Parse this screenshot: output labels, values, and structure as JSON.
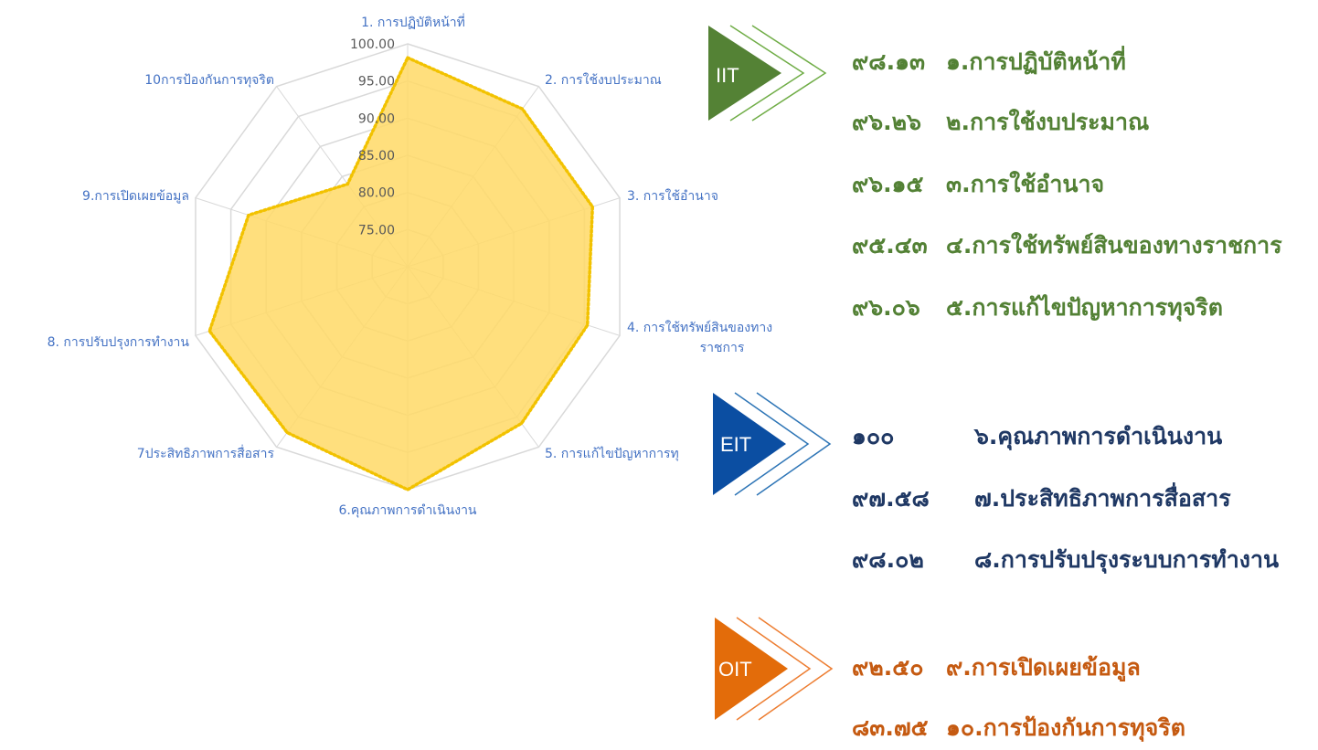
{
  "chart_data": {
    "type": "radar",
    "axes": [
      "1. การปฏิบัติหน้าที่",
      "2. การใช้งบประมาณ",
      "3. การใช้อำนาจ",
      "4. การใช้ทรัพย์สินของทาง ราชการ",
      "5. การแก้ไขปัญหาการทุ",
      "6.คุณภาพการดำเนินงาน",
      "7ประสิทธิภาพการสื่อสาร",
      "8. การปรับปรุงการทำงาน",
      "9.การเปิดเผยข้อมูล",
      "10การป้องกันการทุจริต"
    ],
    "axis_label_lines": [
      [
        "1. การปฏิบัติหน้าที่"
      ],
      [
        "2. การใช้งบประมาณ"
      ],
      [
        "3. การใช้อำนาจ"
      ],
      [
        "4. การใช้ทรัพย์สินของทาง",
        "ราชการ"
      ],
      [
        "5. การแก้ไขปัญหาการทุ"
      ],
      [
        "6.คุณภาพการดำเนินงาน"
      ],
      [
        "7ประสิทธิภาพการสื่อสาร"
      ],
      [
        "8. การปรับปรุงการทำงาน"
      ],
      [
        "9.การเปิดเผยข้อมูล"
      ],
      [
        "10การป้องกันการทุจริต"
      ]
    ],
    "values": [
      98.13,
      96.26,
      96.15,
      95.43,
      96.06,
      100,
      97.58,
      98.02,
      92.5,
      83.75
    ],
    "tick_labels": [
      "75.00",
      "80.00",
      "85.00",
      "90.00",
      "95.00",
      "100.00"
    ],
    "ticks": [
      75,
      80,
      85,
      90,
      95,
      100
    ],
    "rmin": 70,
    "rmax": 100,
    "grid": true,
    "fill_color": "#ffd966",
    "line_color": "#f2c200",
    "grid_color": "#d9d9d9"
  },
  "groups": [
    {
      "badge": "IIT",
      "color": "#538135",
      "items": [
        {
          "num": "๙๘.๑๓",
          "label": "๑.การปฏิบัติหน้าที่"
        },
        {
          "num": "๙๖.๒๖",
          "label": "๒.การใช้งบประมาณ"
        },
        {
          "num": "๙๖.๑๕",
          "label": "๓.การใช้อำนาจ"
        },
        {
          "num": "๙๕.๔๓",
          "label": "๔.การใช้ทรัพย์สินของทางราชการ"
        },
        {
          "num": "๙๖.๐๖",
          "label": "๕.การแก้ไขปัญหาการทุจริต"
        }
      ]
    },
    {
      "badge": "EIT",
      "color": "#1f3864",
      "items": [
        {
          "num": "๑๐๐",
          "label": "๖.คุณภาพการดำเนินงาน"
        },
        {
          "num": "๙๗.๕๘",
          "label": "๗.ประสิทธิภาพการสื่อสาร"
        },
        {
          "num": "๙๘.๐๒",
          "label": "๘.การปรับปรุงระบบการทำงาน"
        }
      ]
    },
    {
      "badge": "OIT",
      "color": "#c55a11",
      "items": [
        {
          "num": "๙๒.๕๐",
          "label": "๙.การเปิดเผยข้อมูล"
        },
        {
          "num": "๘๓.๗๕",
          "label": "๑๐.การป้องกันการทุจริต"
        }
      ]
    }
  ]
}
